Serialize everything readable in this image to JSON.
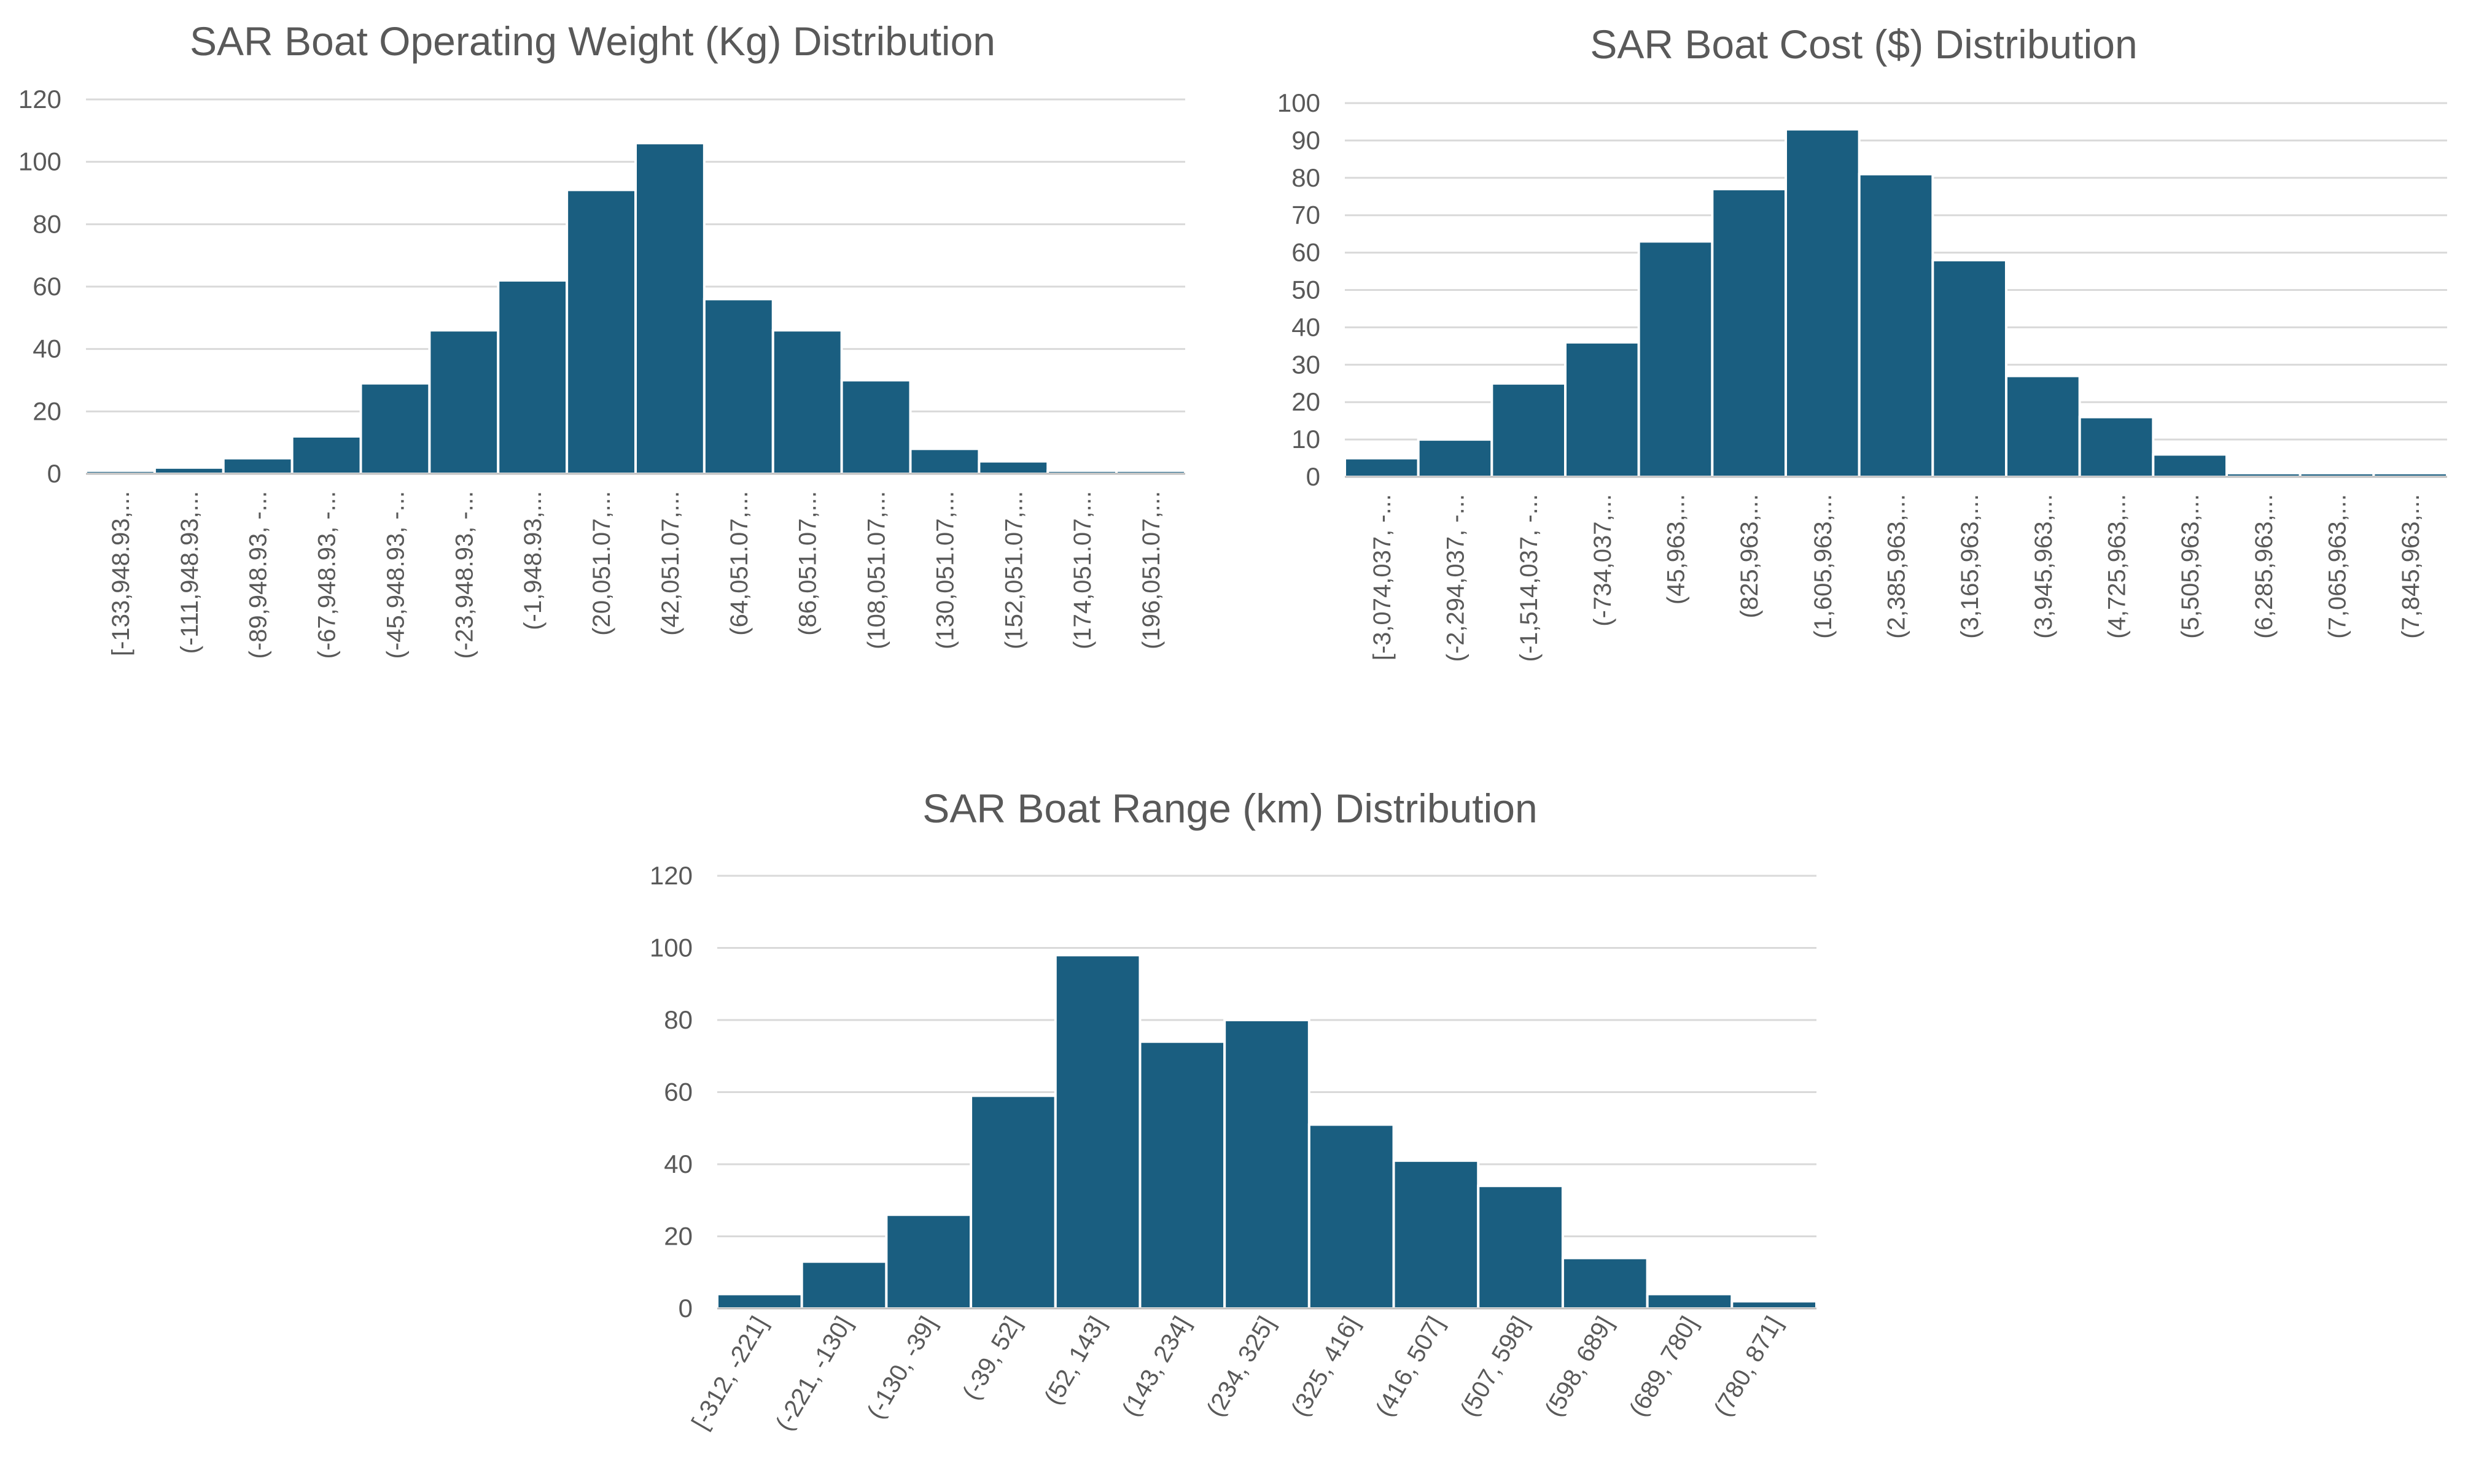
{
  "chart_data": [
    {
      "id": "weight",
      "type": "bar",
      "title": "SAR Boat Operating Weight (Kg) Distribution",
      "xlabel": "",
      "ylabel": "",
      "ylim": [
        0,
        120
      ],
      "yticks": [
        0,
        20,
        40,
        60,
        80,
        100,
        120
      ],
      "categories": [
        "[-133,948.93,...",
        "(-111,948.93,...",
        "(-89,948.93, -...",
        "(-67,948.93, -...",
        "(-45,948.93, -...",
        "(-23,948.93, -...",
        "(-1,948.93,...",
        "(20,051.07,...",
        "(42,051.07,...",
        "(64,051.07,...",
        "(86,051.07,...",
        "(108,051.07,...",
        "(130,051.07,...",
        "(152,051.07,...",
        "(174,051.07,...",
        "(196,051.07,..."
      ],
      "values": [
        1,
        2,
        5,
        12,
        29,
        46,
        62,
        91,
        106,
        56,
        46,
        30,
        8,
        4,
        1,
        1
      ],
      "bar_color": "#1a5e80",
      "grid": true,
      "label_rotation": "vertical"
    },
    {
      "id": "cost",
      "type": "bar",
      "title": "SAR Boat Cost ($) Distribution",
      "xlabel": "",
      "ylabel": "",
      "ylim": [
        0,
        100
      ],
      "yticks": [
        0,
        10,
        20,
        30,
        40,
        50,
        60,
        70,
        80,
        90,
        100
      ],
      "categories": [
        "[-3,074,037, -...",
        "(-2,294,037, -...",
        "(-1,514,037, -...",
        "(-734,037,...",
        "(45,963,...",
        "(825,963,...",
        "(1,605,963,...",
        "(2,385,963,...",
        "(3,165,963,...",
        "(3,945,963,...",
        "(4,725,963,...",
        "(5,505,963,...",
        "(6,285,963,...",
        "(7,065,963,...",
        "(7,845,963,..."
      ],
      "values": [
        5,
        10,
        25,
        36,
        63,
        77,
        93,
        81,
        58,
        27,
        16,
        6,
        1,
        1,
        1
      ],
      "bar_color": "#1a5e80",
      "grid": true,
      "label_rotation": "vertical"
    },
    {
      "id": "range",
      "type": "bar",
      "title": "SAR Boat Range (km) Distribution",
      "xlabel": "",
      "ylabel": "",
      "ylim": [
        0,
        120
      ],
      "yticks": [
        0,
        20,
        40,
        60,
        80,
        100,
        120
      ],
      "categories": [
        "[-312, -221]",
        "(-221, -130]",
        "(-130, -39]",
        "(-39, 52]",
        "(52, 143]",
        "(143, 234]",
        "(234, 325]",
        "(325, 416]",
        "(416, 507]",
        "(507, 598]",
        "(598, 689]",
        "(689, 780]",
        "(780, 871]"
      ],
      "values": [
        4,
        13,
        26,
        59,
        98,
        74,
        80,
        51,
        41,
        34,
        14,
        4,
        2
      ],
      "bar_color": "#1a5e80",
      "grid": true,
      "label_rotation": "diagonal"
    }
  ]
}
